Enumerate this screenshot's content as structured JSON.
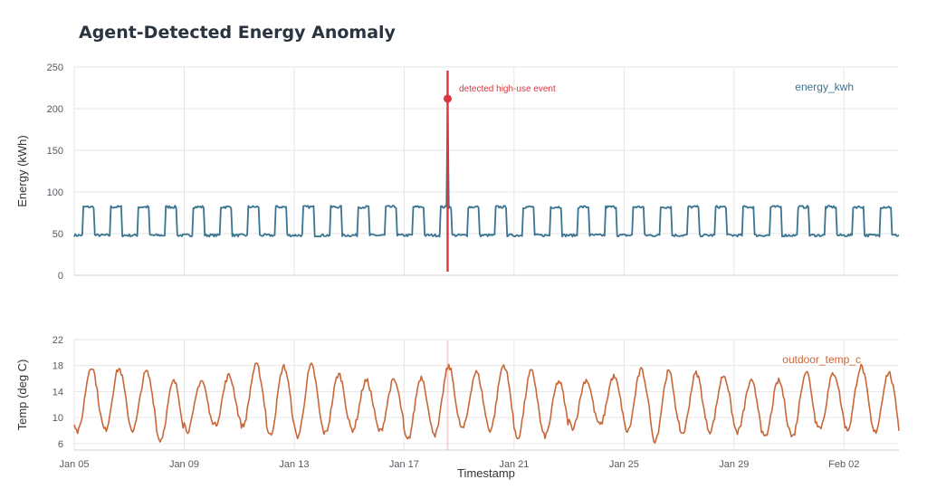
{
  "chart_data": [
    {
      "type": "line",
      "title": "Agent-Detected Energy Anomaly",
      "ylabel": "Energy (kWh)",
      "ylim": [
        0,
        250
      ],
      "y_ticks": [
        "0",
        "50",
        "100",
        "150",
        "200",
        "250"
      ],
      "grid": true,
      "legend": "top-right",
      "series": [
        {
          "name": "energy_kwh",
          "color": "#3a7490",
          "pattern": {
            "start": "2025-01-05",
            "end": "2025-02-04",
            "step_hours": 1,
            "low_kwh": 48,
            "high_kwh": 82,
            "high_hours": "08:00-18:00 daily"
          }
        }
      ],
      "annotation": {
        "label": "detected high-use event",
        "timestamp": "2025-01-18 14:00",
        "value": 212,
        "color": "#d9363e"
      }
    },
    {
      "type": "line",
      "ylabel": "Temp (deg C)",
      "xlabel": "Timestamp",
      "ylim": [
        5,
        22
      ],
      "y_ticks": [
        "6",
        "10",
        "14",
        "18",
        "22"
      ],
      "x_ticks": [
        "Jan 05",
        "Jan 09",
        "Jan 13",
        "Jan 17",
        "Jan 21",
        "Jan 25",
        "Jan 29",
        "Feb 02"
      ],
      "grid": true,
      "legend": "top-right",
      "series": [
        {
          "name": "outdoor_temp_c",
          "color": "#c8673a",
          "pattern": {
            "start": "2025-01-05",
            "end": "2025-02-04",
            "step_hours": 1,
            "daily_cycle_min_c": [
              8,
              6
            ],
            "daily_cycle_max_c": [
              18,
              15
            ],
            "peak_hour": "15:00"
          }
        }
      ]
    }
  ]
}
